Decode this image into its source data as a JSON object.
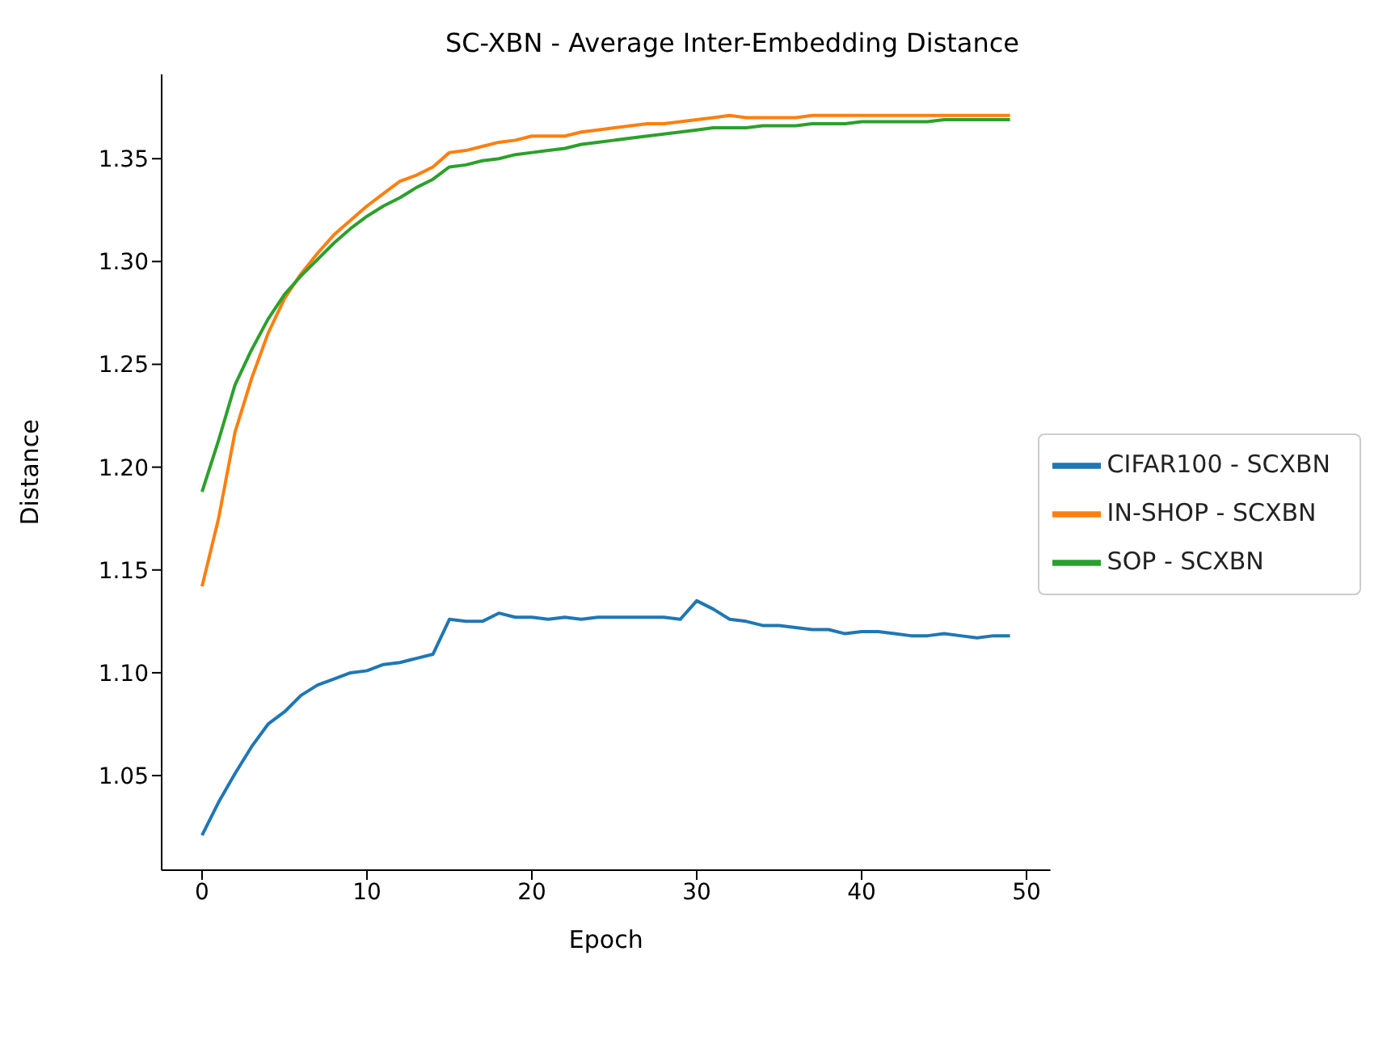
{
  "chart_data": {
    "type": "line",
    "title": "SC-XBN - Average Inter-Embedding Distance",
    "xlabel": "Epoch",
    "ylabel": "Distance",
    "x": [
      0,
      1,
      2,
      3,
      4,
      5,
      6,
      7,
      8,
      9,
      10,
      11,
      12,
      13,
      14,
      15,
      16,
      17,
      18,
      19,
      20,
      21,
      22,
      23,
      24,
      25,
      26,
      27,
      28,
      29,
      30,
      31,
      32,
      33,
      34,
      35,
      36,
      37,
      38,
      39,
      40,
      41,
      42,
      43,
      44,
      45,
      46,
      47,
      48,
      49
    ],
    "series": [
      {
        "name": "CIFAR100 - SCXBN",
        "color": "#1f77b4",
        "values": [
          1.021,
          1.037,
          1.051,
          1.064,
          1.075,
          1.081,
          1.089,
          1.094,
          1.097,
          1.1,
          1.101,
          1.104,
          1.105,
          1.107,
          1.109,
          1.126,
          1.125,
          1.125,
          1.129,
          1.127,
          1.127,
          1.126,
          1.127,
          1.126,
          1.127,
          1.127,
          1.127,
          1.127,
          1.127,
          1.126,
          1.135,
          1.131,
          1.126,
          1.125,
          1.123,
          1.123,
          1.122,
          1.121,
          1.121,
          1.119,
          1.12,
          1.12,
          1.119,
          1.118,
          1.118,
          1.119,
          1.118,
          1.117,
          1.118,
          1.118
        ]
      },
      {
        "name": "IN-SHOP - SCXBN",
        "color": "#ff7f0e",
        "values": [
          1.142,
          1.175,
          1.217,
          1.243,
          1.265,
          1.282,
          1.294,
          1.304,
          1.313,
          1.32,
          1.327,
          1.333,
          1.339,
          1.342,
          1.346,
          1.353,
          1.354,
          1.356,
          1.358,
          1.359,
          1.361,
          1.361,
          1.361,
          1.363,
          1.364,
          1.365,
          1.366,
          1.367,
          1.367,
          1.368,
          1.369,
          1.37,
          1.371,
          1.37,
          1.37,
          1.37,
          1.37,
          1.371,
          1.371,
          1.371,
          1.371,
          1.371,
          1.371,
          1.371,
          1.371,
          1.371,
          1.371,
          1.371,
          1.371,
          1.371
        ]
      },
      {
        "name": "SOP - SCXBN",
        "color": "#2ca02c",
        "values": [
          1.188,
          1.213,
          1.24,
          1.257,
          1.272,
          1.284,
          1.293,
          1.301,
          1.309,
          1.316,
          1.322,
          1.327,
          1.331,
          1.336,
          1.34,
          1.346,
          1.347,
          1.349,
          1.35,
          1.352,
          1.353,
          1.354,
          1.355,
          1.357,
          1.358,
          1.359,
          1.36,
          1.361,
          1.362,
          1.363,
          1.364,
          1.365,
          1.365,
          1.365,
          1.366,
          1.366,
          1.366,
          1.367,
          1.367,
          1.367,
          1.368,
          1.368,
          1.368,
          1.368,
          1.368,
          1.369,
          1.369,
          1.369,
          1.369,
          1.369
        ]
      }
    ],
    "xlim": [
      -2.45,
      51.45
    ],
    "xticks": [
      0,
      10,
      20,
      30,
      40,
      50
    ],
    "ylim": [
      1.004,
      1.391
    ],
    "yticks": [
      {
        "value": 1.05,
        "label": "1.05"
      },
      {
        "value": 1.1,
        "label": "1.10"
      },
      {
        "value": 1.15,
        "label": "1.15"
      },
      {
        "value": 1.2,
        "label": "1.20"
      },
      {
        "value": 1.25,
        "label": "1.25"
      },
      {
        "value": 1.3,
        "label": "1.30"
      },
      {
        "value": 1.35,
        "label": "1.35"
      }
    ],
    "legend": "center right",
    "grid": false,
    "marker": "none",
    "line_style": "solid"
  }
}
